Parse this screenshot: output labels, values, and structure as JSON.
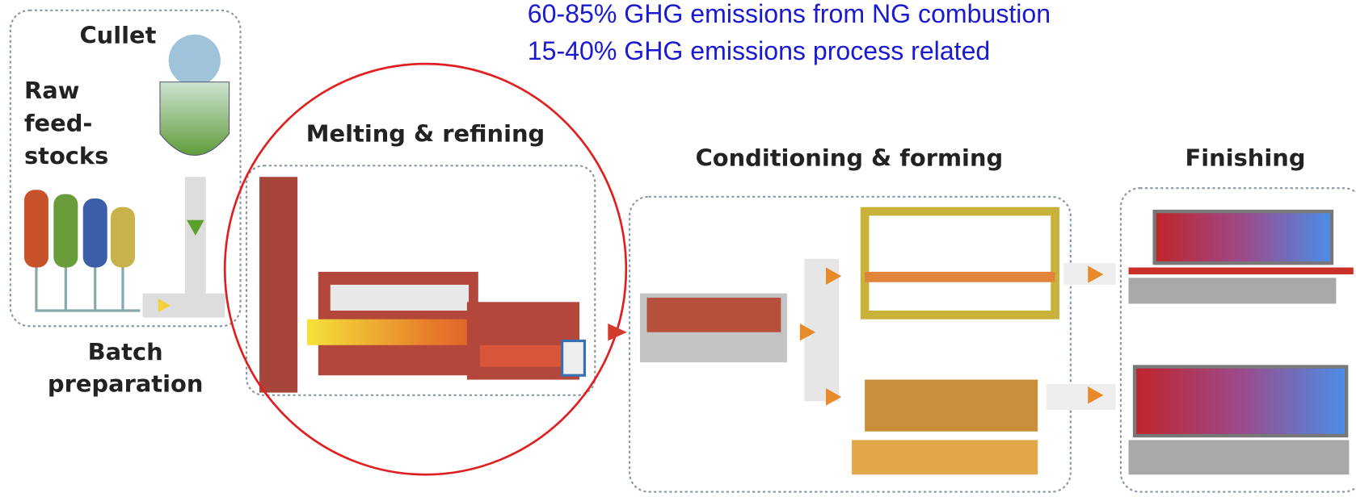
{
  "annotations": [
    "60-85% GHG emissions  from NG combustion",
    "15-40% GHG emissions process related"
  ],
  "stages": {
    "batch": {
      "cullet": "Cullet",
      "raw": [
        "Raw",
        "feed-",
        "stocks"
      ],
      "label": [
        "Batch",
        "preparation"
      ]
    },
    "melting": {
      "label": "Melting & refining"
    },
    "conditioning": {
      "label": "Conditioning & forming"
    },
    "finishing": {
      "label": "Finishing"
    }
  }
}
